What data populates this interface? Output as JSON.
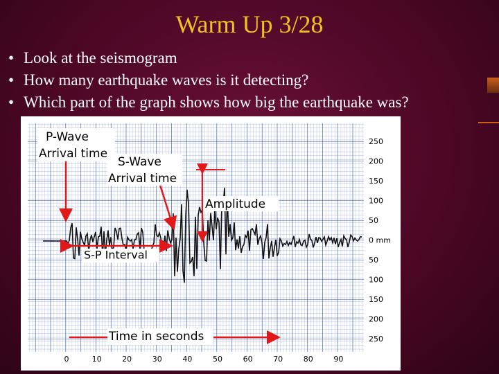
{
  "header": {
    "title": "Warm Up 3/28"
  },
  "bullets": [
    "Look at the seismogram",
    "How many earthquake waves is it detecting?",
    "Which part of the graph shows how big the earthquake was?"
  ],
  "figure": {
    "p_wave": [
      "P-Wave",
      "Arrival time"
    ],
    "s_wave": [
      "S-Wave",
      "Arrival time"
    ],
    "amplitude": "Amplitude",
    "sp_interval": "S-P Interval",
    "time_label": "Time in seconds",
    "y_labels": [
      "250",
      "200",
      "150",
      "100",
      "50",
      "0 mm",
      "50",
      "100",
      "150",
      "200",
      "250"
    ],
    "x_labels": [
      "0",
      "10",
      "20",
      "30",
      "40",
      "50",
      "60",
      "70",
      "80",
      "90"
    ]
  }
}
